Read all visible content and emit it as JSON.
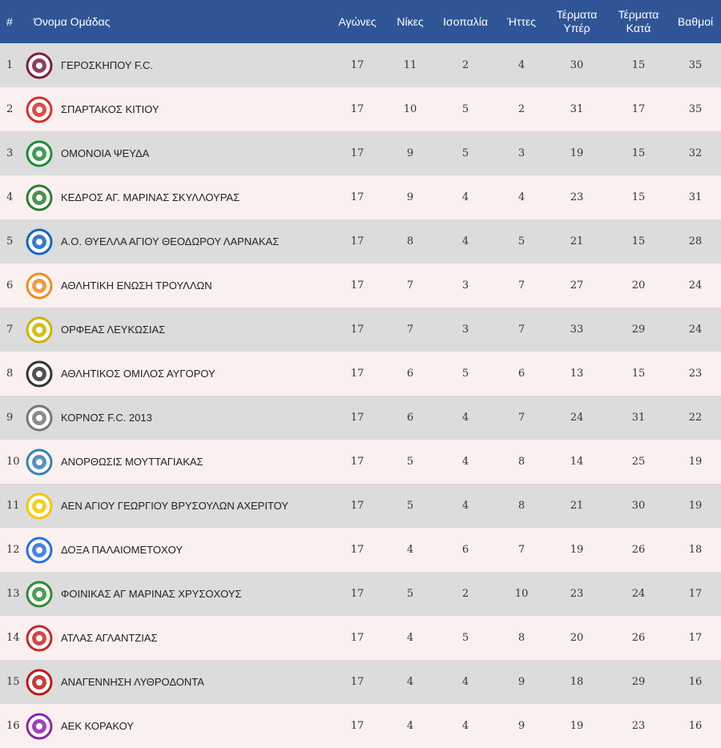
{
  "headers": {
    "pos": "#",
    "team": "Όνομα Ομάδας",
    "played": "Αγώνες",
    "wins": "Νίκες",
    "draws": "Ισοπαλία",
    "losses": "Ήττες",
    "gf_1": "Τέρματα",
    "gf_2": "Υπέρ",
    "ga_1": "Τέρματα",
    "ga_2": "Κατά",
    "pts": "Βαθμοί"
  },
  "rows": [
    {
      "pos": "1",
      "team": "ΓΕΡΟΣΚΗΠΟΥ F.C.",
      "played": "17",
      "wins": "11",
      "draws": "2",
      "losses": "4",
      "gf": "30",
      "ga": "15",
      "pts": "35",
      "logo": "geroskipou-crest-icon",
      "color": "#7a1f3d"
    },
    {
      "pos": "2",
      "team": "ΣΠΑΡΤΑΚΟΣ ΚΙΤΙΟΥ",
      "played": "17",
      "wins": "10",
      "draws": "5",
      "losses": "2",
      "gf": "31",
      "ga": "17",
      "pts": "35",
      "logo": "spartakos-crest-icon",
      "color": "#d32f2f"
    },
    {
      "pos": "3",
      "team": "ΟΜΟΝΟΙΑ ΨΕΥΔΑ",
      "played": "17",
      "wins": "9",
      "draws": "5",
      "losses": "3",
      "gf": "19",
      "ga": "15",
      "pts": "32",
      "logo": "omonoia-clover-icon",
      "color": "#1f8a3a"
    },
    {
      "pos": "4",
      "team": "ΚΕΔΡΟΣ ΑΓ. ΜΑΡΙΝΑΣ ΣΚΥΛΛΟΥΡΑΣ",
      "played": "17",
      "wins": "9",
      "draws": "4",
      "losses": "4",
      "gf": "23",
      "ga": "15",
      "pts": "31",
      "logo": "kedros-cedar-icon",
      "color": "#2e7d32"
    },
    {
      "pos": "5",
      "team": "Α.Ο. ΘΥΕΛΛΑ ΑΓΙΟΥ ΘΕΟΔΩΡΟΥ ΛΑΡΝΑΚΑΣ",
      "played": "17",
      "wins": "8",
      "draws": "4",
      "losses": "5",
      "gf": "21",
      "ga": "15",
      "pts": "28",
      "logo": "thyella-crest-icon",
      "color": "#1565c0"
    },
    {
      "pos": "6",
      "team": "ΑΘΛΗΤΙΚΗ ΕΝΩΣΗ ΤΡΟΥΛΛΩΝ",
      "played": "17",
      "wins": "7",
      "draws": "3",
      "losses": "7",
      "gf": "27",
      "ga": "20",
      "pts": "24",
      "logo": "troullon-crest-icon",
      "color": "#ef8a1f"
    },
    {
      "pos": "7",
      "team": "ΟΡΦΕΑΣ ΛΕΥΚΩΣΙΑΣ",
      "played": "17",
      "wins": "7",
      "draws": "3",
      "losses": "7",
      "gf": "33",
      "ga": "29",
      "pts": "24",
      "logo": "orfeas-crest-icon",
      "color": "#c9b400"
    },
    {
      "pos": "8",
      "team": "ΑΘΛΗΤΙΚΟΣ ΟΜΙΛΟΣ ΑΥΓΟΡΟΥ",
      "played": "17",
      "wins": "6",
      "draws": "5",
      "losses": "6",
      "gf": "13",
      "ga": "15",
      "pts": "23",
      "logo": "avgorou-crest-icon",
      "color": "#333333"
    },
    {
      "pos": "9",
      "team": "ΚΟΡΝΟΣ F.C. 2013",
      "played": "17",
      "wins": "6",
      "draws": "4",
      "losses": "7",
      "gf": "24",
      "ga": "31",
      "pts": "22",
      "logo": "kornos-crest-icon",
      "color": "#777777"
    },
    {
      "pos": "10",
      "team": "ΑΝΟΡΘΩΣΙΣ ΜΟΥΤΤΑΓΙΑΚΑΣ",
      "played": "17",
      "wins": "5",
      "draws": "4",
      "losses": "8",
      "gf": "14",
      "ga": "25",
      "pts": "19",
      "logo": "anorthosis-crest-icon",
      "color": "#3a7fb0"
    },
    {
      "pos": "11",
      "team": "ΑΕΝ ΑΓΙΟΥ ΓΕΩΡΓΙΟΥ ΒΡΥΣΟΥΛΩΝ ΑΧΕΡΙΤΟΥ",
      "played": "17",
      "wins": "5",
      "draws": "4",
      "losses": "8",
      "gf": "21",
      "ga": "30",
      "pts": "19",
      "logo": "aen-crest-icon",
      "color": "#f2c600"
    },
    {
      "pos": "12",
      "team": "ΔΟΞΑ ΠΑΛΑΙΟΜΕΤΟΧΟΥ",
      "played": "17",
      "wins": "4",
      "draws": "6",
      "losses": "7",
      "gf": "19",
      "ga": "26",
      "pts": "18",
      "logo": "doxa-crest-icon",
      "color": "#2a6fd6"
    },
    {
      "pos": "13",
      "team": "ΦΟΙΝΙΚΑΣ ΑΓ ΜΑΡΙΝΑΣ ΧΡΥΣΟΧΟΥΣ",
      "played": "17",
      "wins": "5",
      "draws": "2",
      "losses": "10",
      "gf": "23",
      "ga": "24",
      "pts": "17",
      "logo": "foinikas-crest-icon",
      "color": "#2e8b3a"
    },
    {
      "pos": "14",
      "team": "ΑΤΛΑΣ ΑΓΛΑΝΤΖΙΑΣ",
      "played": "17",
      "wins": "4",
      "draws": "5",
      "losses": "8",
      "gf": "20",
      "ga": "26",
      "pts": "17",
      "logo": "atlas-crest-icon",
      "color": "#c62828"
    },
    {
      "pos": "15",
      "team": "ΑΝΑΓΕΝΝΗΣΗ ΛΥΘΡΟΔΟΝΤΑ",
      "played": "17",
      "wins": "4",
      "draws": "4",
      "losses": "9",
      "gf": "18",
      "ga": "29",
      "pts": "16",
      "logo": "anagennisi-crest-icon",
      "color": "#b71c1c"
    },
    {
      "pos": "16",
      "team": "ΑΕΚ ΚΟΡΑΚΟΥ",
      "played": "17",
      "wins": "4",
      "draws": "4",
      "losses": "9",
      "gf": "19",
      "ga": "23",
      "pts": "16",
      "logo": "aek-korakou-crest-icon",
      "color": "#8e24aa"
    }
  ]
}
